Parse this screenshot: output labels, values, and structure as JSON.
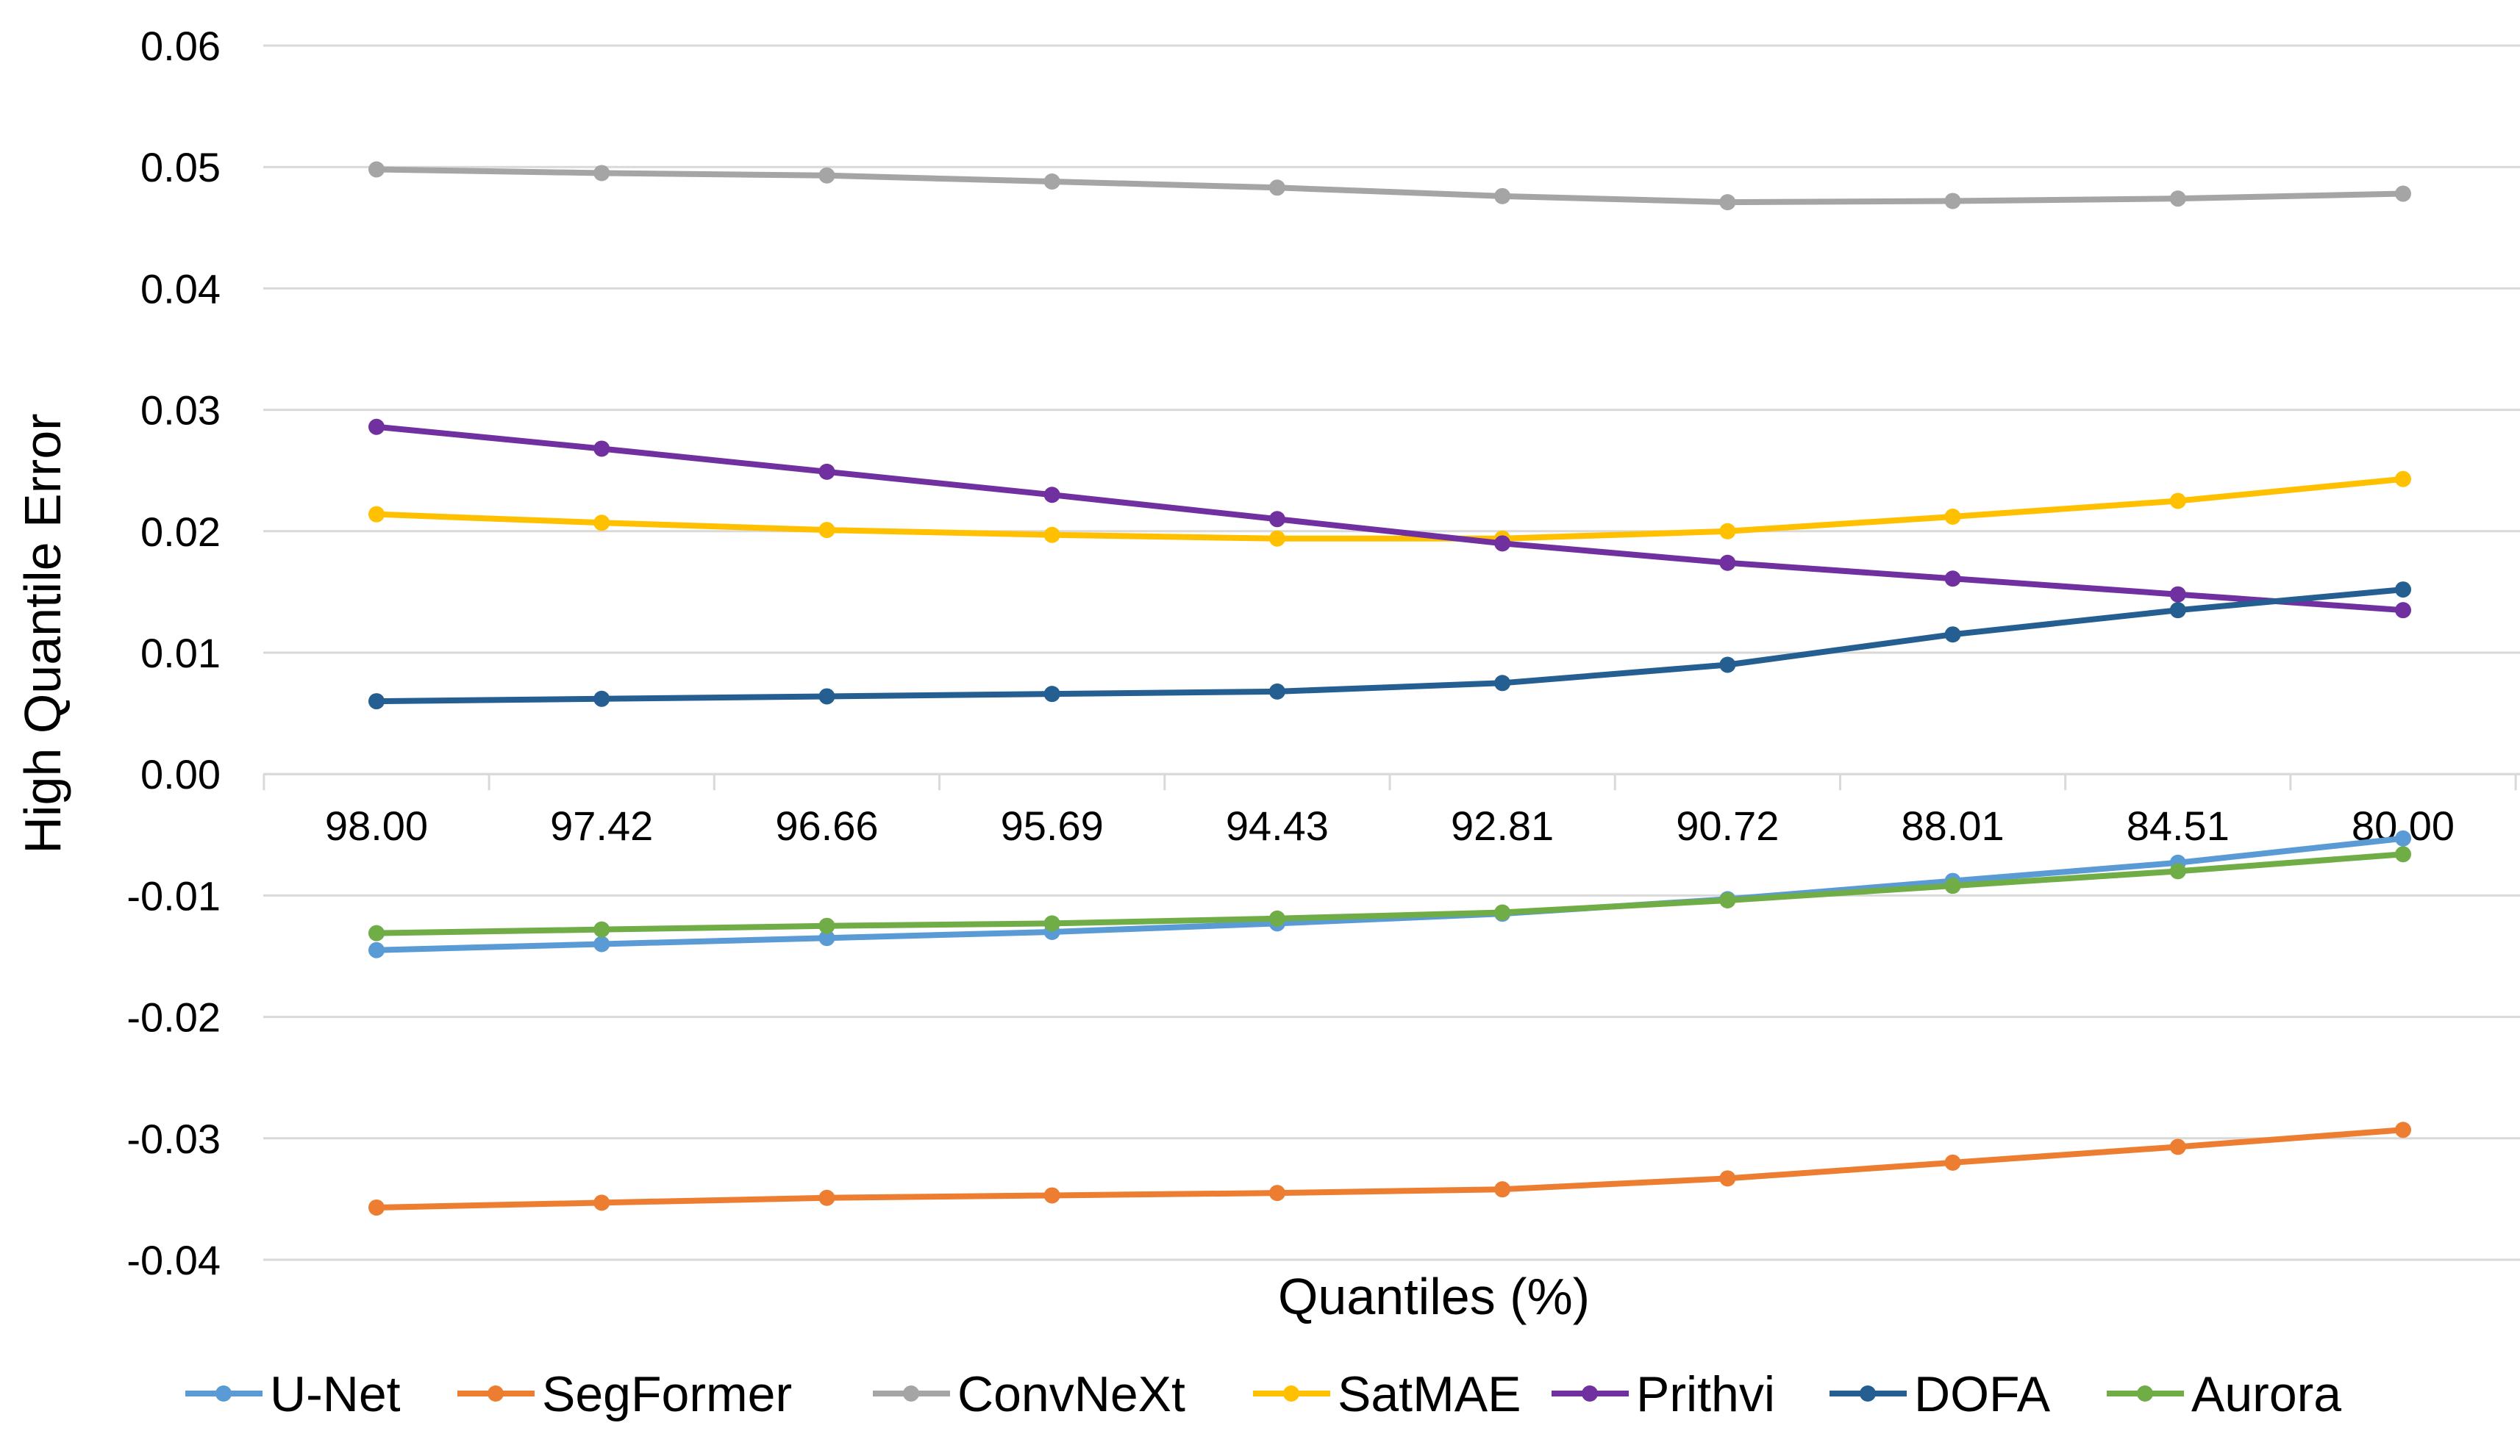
{
  "chart_data": {
    "type": "line",
    "title": "",
    "xlabel": "Quantiles (%)",
    "ylabel": "High Quantile Error",
    "ylim": [
      -0.04,
      0.06
    ],
    "yticks": [
      "0.06",
      "0.05",
      "0.04",
      "0.03",
      "0.02",
      "0.01",
      "0.00",
      "-0.01",
      "-0.02",
      "-0.03",
      "-0.04"
    ],
    "categories": [
      "98.00",
      "97.42",
      "96.66",
      "95.69",
      "94.43",
      "92.81",
      "90.72",
      "88.01",
      "84.51",
      "80.00"
    ],
    "grid": true,
    "legend_position": "bottom",
    "series": [
      {
        "name": "U-Net",
        "color": "#5b9bd5",
        "values": [
          -0.0145,
          -0.014,
          -0.0135,
          -0.013,
          -0.0123,
          -0.0115,
          -0.0103,
          -0.0088,
          -0.0073,
          -0.0053
        ]
      },
      {
        "name": "SegFormer",
        "color": "#ed7d31",
        "values": [
          -0.0357,
          -0.0353,
          -0.0349,
          -0.0347,
          -0.0345,
          -0.0342,
          -0.0333,
          -0.032,
          -0.0307,
          -0.0293
        ]
      },
      {
        "name": "ConvNeXt",
        "color": "#a5a5a5",
        "values": [
          0.0498,
          0.0495,
          0.0493,
          0.0488,
          0.0483,
          0.0476,
          0.0471,
          0.0472,
          0.0474,
          0.0478
        ]
      },
      {
        "name": "SatMAE",
        "color": "#ffc000",
        "values": [
          0.0214,
          0.0207,
          0.0201,
          0.0197,
          0.0194,
          0.0194,
          0.02,
          0.0212,
          0.0225,
          0.0243
        ]
      },
      {
        "name": "Prithvi",
        "color": "#7030a0",
        "values": [
          0.0286,
          0.0268,
          0.0249,
          0.023,
          0.021,
          0.019,
          0.0174,
          0.0161,
          0.0148,
          0.0135
        ]
      },
      {
        "name": "DOFA",
        "color": "#255e91",
        "values": [
          0.006,
          0.0062,
          0.0064,
          0.0066,
          0.0068,
          0.0075,
          0.009,
          0.0115,
          0.0135,
          0.0152
        ]
      },
      {
        "name": "Aurora",
        "color": "#70ad47",
        "values": [
          -0.0131,
          -0.0128,
          -0.0125,
          -0.0123,
          -0.0119,
          -0.0114,
          -0.0104,
          -0.0092,
          -0.008,
          -0.0066
        ]
      }
    ]
  }
}
